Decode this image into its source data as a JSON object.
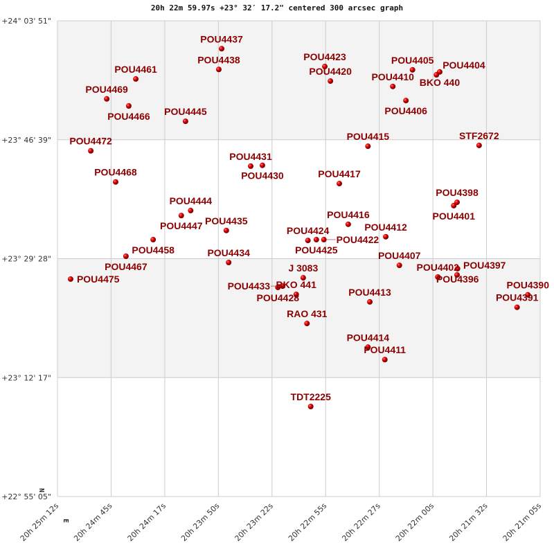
{
  "chart_data": {
    "type": "scatter",
    "title": "20h 22m 59.97s +23° 32′ 17.2\" centered 300 arcsec graph",
    "x_axis": {
      "quantity": "right ascension (deg)",
      "range": [
        306.3,
        305.2708
      ],
      "reversed": true,
      "tick_labels": [
        "20h 25m 12s",
        "20h 24m 45s",
        "20h 24m 17s",
        "20h 23m 50s",
        "20h 23m 22s",
        "20h 22m 55s",
        "20h 22m 27s",
        "20h 22m 00s",
        "20h 21m 32s",
        "20h 21m 05s"
      ]
    },
    "y_axis": {
      "quantity": "declination (deg)",
      "range": [
        22.9181,
        24.0642
      ],
      "tick_labels": [
        "+24° 03' 51\"",
        "+23° 46' 39\"",
        "+23° 29' 28\"",
        "+23° 12' 17\"",
        "+22° 55' 05\""
      ]
    },
    "grid": true,
    "band_colors": [
      "#f3f3f3",
      "#ffffff"
    ],
    "marker_color": "#dd0000",
    "label_color": "#8b0000",
    "directions": {
      "north": "N",
      "east": "E"
    },
    "points": [
      {
        "name": "POU4437",
        "ra": 305.95,
        "dec": 23.997
      },
      {
        "name": "POU4438",
        "ra": 305.956,
        "dec": 23.947
      },
      {
        "name": "POU4461",
        "ra": 306.133,
        "dec": 23.924
      },
      {
        "name": "POU4469",
        "ra": 306.195,
        "dec": 23.876
      },
      {
        "name": "POU4466",
        "ra": 306.148,
        "dec": 23.859
      },
      {
        "name": "POU4445",
        "ra": 306.027,
        "dec": 23.822
      },
      {
        "name": "POU4423",
        "ra": 305.73,
        "dec": 23.954
      },
      {
        "name": "POU4420",
        "ra": 305.718,
        "dec": 23.919
      },
      {
        "name": "POU4405",
        "ra": 305.543,
        "dec": 23.946
      },
      {
        "name": "BKO 440",
        "ra": 305.485,
        "dec": 23.941
      },
      {
        "name": "POU4404",
        "ra": 305.492,
        "dec": 23.934
      },
      {
        "name": "POU4410",
        "ra": 305.585,
        "dec": 23.906
      },
      {
        "name": "POU4406",
        "ra": 305.557,
        "dec": 23.872
      },
      {
        "name": "POU4472",
        "ra": 306.229,
        "dec": 23.751
      },
      {
        "name": "POU4415",
        "ra": 305.638,
        "dec": 23.762
      },
      {
        "name": "STF2672",
        "ra": 305.401,
        "dec": 23.764
      },
      {
        "name": "POU4431",
        "ra": 305.888,
        "dec": 23.714
      },
      {
        "name": "POU4430",
        "ra": 305.863,
        "dec": 23.716
      },
      {
        "name": "POU4468",
        "ra": 306.176,
        "dec": 23.676
      },
      {
        "name": "POU4417",
        "ra": 305.699,
        "dec": 23.672
      },
      {
        "name": "POU4398",
        "ra": 305.448,
        "dec": 23.627
      },
      {
        "name": "POU4401",
        "ra": 305.455,
        "dec": 23.619
      },
      {
        "name": "POU4444",
        "ra": 306.016,
        "dec": 23.607
      },
      {
        "name": "POU4447",
        "ra": 306.036,
        "dec": 23.595
      },
      {
        "name": "POU4416",
        "ra": 305.68,
        "dec": 23.574
      },
      {
        "name": "POU4435",
        "ra": 305.94,
        "dec": 23.559
      },
      {
        "name": "POU4458",
        "ra": 306.096,
        "dec": 23.537
      },
      {
        "name": "POU4412",
        "ra": 305.6,
        "dec": 23.544
      },
      {
        "name": "POU4424",
        "ra": 305.766,
        "dec": 23.535
      },
      {
        "name": "POU4425",
        "ra": 305.748,
        "dec": 23.537
      },
      {
        "name": "POU4422",
        "ra": 305.732,
        "dec": 23.537
      },
      {
        "name": "POU4467",
        "ra": 306.154,
        "dec": 23.497
      },
      {
        "name": "POU4434",
        "ra": 305.935,
        "dec": 23.482
      },
      {
        "name": "POU4407",
        "ra": 305.571,
        "dec": 23.475
      },
      {
        "name": "POU4475",
        "ra": 306.272,
        "dec": 23.442
      },
      {
        "name": "J  3083",
        "ra": 305.776,
        "dec": 23.445
      },
      {
        "name": "BKO 441",
        "ra": 305.791,
        "dec": 23.405
      },
      {
        "name": "POU4428",
        "ra": 305.83,
        "dec": 23.422
      },
      {
        "name": "POU4433",
        "ra": 305.82,
        "dec": 23.425
      },
      {
        "name": "POU4402",
        "ra": 305.489,
        "dec": 23.447
      },
      {
        "name": "POU4396",
        "ra": 305.447,
        "dec": 23.467
      },
      {
        "name": "POU4397",
        "ra": 305.448,
        "dec": 23.452
      },
      {
        "name": "POU4390",
        "ra": 305.297,
        "dec": 23.404
      },
      {
        "name": "POU4391",
        "ra": 305.32,
        "dec": 23.374
      },
      {
        "name": "POU4413",
        "ra": 305.634,
        "dec": 23.387
      },
      {
        "name": "RAO 431",
        "ra": 305.768,
        "dec": 23.335
      },
      {
        "name": "POU4414",
        "ra": 305.638,
        "dec": 23.278
      },
      {
        "name": "POU4411",
        "ra": 305.602,
        "dec": 23.248
      },
      {
        "name": "TDT2225",
        "ra": 305.76,
        "dec": 23.135
      }
    ]
  }
}
